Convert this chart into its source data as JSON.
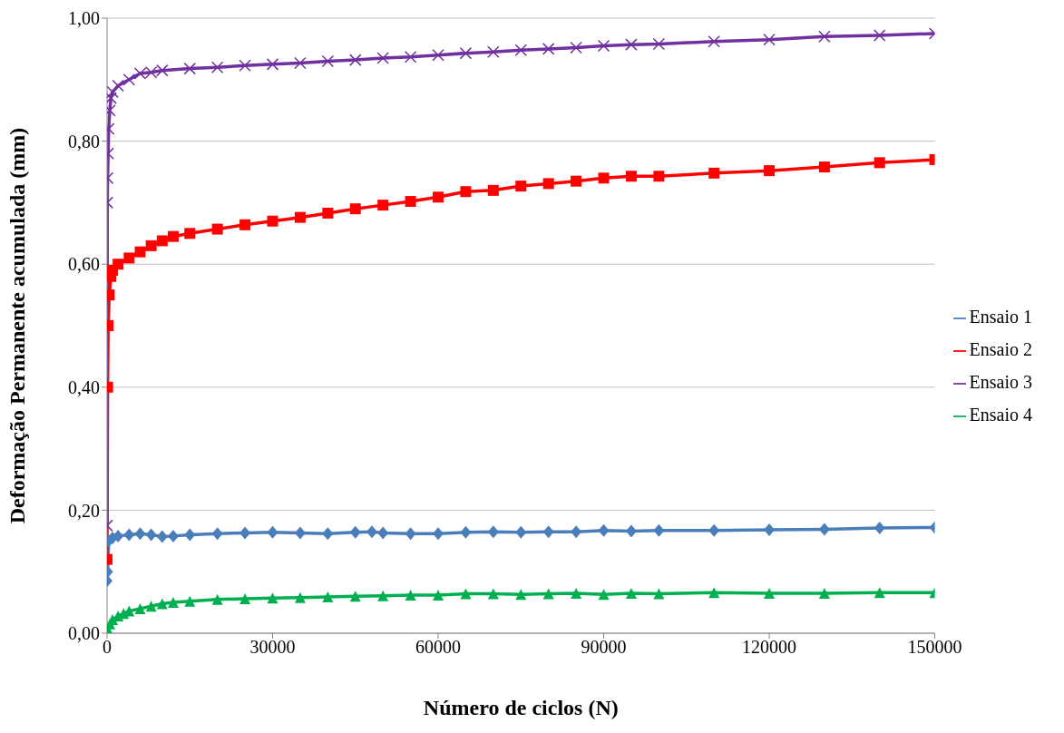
{
  "chart_data": {
    "type": "line",
    "xlabel": "Número de ciclos (N)",
    "ylabel": "Deformação Permanente acumulada (mm)",
    "xlim": [
      0,
      150000
    ],
    "xticks": [
      0,
      30000,
      60000,
      90000,
      120000,
      150000
    ],
    "ylim": [
      0,
      1
    ],
    "yticks": [
      {
        "value": 0,
        "label": "0,00"
      },
      {
        "value": 0.2,
        "label": "0,20"
      },
      {
        "value": 0.4,
        "label": "0,40"
      },
      {
        "value": 0.6,
        "label": "0,60"
      },
      {
        "value": 0.8,
        "label": "0,80"
      },
      {
        "value": 1,
        "label": "1,00"
      }
    ],
    "grid": "y",
    "legend": "right",
    "line_style": "solid",
    "series": [
      {
        "name": "Ensaio 1",
        "color": "#4a7ebb",
        "marker": "diamond",
        "x": [
          0,
          100,
          300,
          1000,
          2000,
          4000,
          6000,
          8000,
          10000,
          12000,
          15000,
          20000,
          25000,
          30000,
          35000,
          40000,
          45000,
          48000,
          50000,
          55000,
          60000,
          65000,
          70000,
          75000,
          80000,
          85000,
          90000,
          95000,
          100000,
          110000,
          120000,
          130000,
          140000,
          150000
        ],
        "values": [
          0.085,
          0.1,
          0.15,
          0.155,
          0.158,
          0.16,
          0.162,
          0.16,
          0.157,
          0.158,
          0.16,
          0.162,
          0.163,
          0.164,
          0.163,
          0.162,
          0.164,
          0.165,
          0.163,
          0.162,
          0.162,
          0.164,
          0.165,
          0.164,
          0.165,
          0.165,
          0.167,
          0.166,
          0.167,
          0.167,
          0.168,
          0.169,
          0.171,
          0.172
        ]
      },
      {
        "name": "Ensaio 2",
        "color": "#ff0000",
        "marker": "square",
        "x": [
          0,
          100,
          200,
          400,
          700,
          1000,
          2000,
          4000,
          6000,
          8000,
          10000,
          12000,
          15000,
          20000,
          25000,
          30000,
          35000,
          40000,
          45000,
          50000,
          55000,
          60000,
          65000,
          70000,
          75000,
          80000,
          85000,
          90000,
          95000,
          100000,
          110000,
          120000,
          130000,
          140000,
          150000
        ],
        "values": [
          0.12,
          0.4,
          0.5,
          0.55,
          0.58,
          0.59,
          0.6,
          0.61,
          0.62,
          0.63,
          0.638,
          0.645,
          0.65,
          0.657,
          0.664,
          0.67,
          0.676,
          0.683,
          0.69,
          0.696,
          0.702,
          0.709,
          0.718,
          0.72,
          0.727,
          0.731,
          0.735,
          0.74,
          0.743,
          0.743,
          0.748,
          0.752,
          0.758,
          0.765,
          0.77
        ]
      },
      {
        "name": "Ensaio 3",
        "color": "#7030a0",
        "marker": "cross",
        "x": [
          0,
          50,
          100,
          200,
          300,
          500,
          700,
          1000,
          2000,
          4000,
          6000,
          8000,
          10000,
          15000,
          20000,
          25000,
          30000,
          35000,
          40000,
          45000,
          50000,
          55000,
          60000,
          65000,
          70000,
          75000,
          80000,
          85000,
          90000,
          95000,
          100000,
          110000,
          120000,
          130000,
          140000,
          150000
        ],
        "values": [
          0.175,
          0.7,
          0.74,
          0.78,
          0.82,
          0.85,
          0.87,
          0.88,
          0.89,
          0.9,
          0.91,
          0.912,
          0.915,
          0.918,
          0.92,
          0.923,
          0.925,
          0.927,
          0.93,
          0.932,
          0.935,
          0.937,
          0.94,
          0.943,
          0.945,
          0.948,
          0.95,
          0.952,
          0.955,
          0.957,
          0.958,
          0.962,
          0.965,
          0.97,
          0.972,
          0.975
        ]
      },
      {
        "name": "Ensaio 4",
        "color": "#00b050",
        "marker": "triangle",
        "x": [
          0,
          200,
          500,
          1000,
          2000,
          3000,
          4000,
          6000,
          8000,
          10000,
          12000,
          15000,
          20000,
          25000,
          30000,
          35000,
          40000,
          45000,
          50000,
          55000,
          60000,
          65000,
          70000,
          75000,
          80000,
          85000,
          90000,
          95000,
          100000,
          110000,
          120000,
          130000,
          140000,
          150000
        ],
        "values": [
          0,
          0.005,
          0.015,
          0.022,
          0.028,
          0.032,
          0.036,
          0.04,
          0.044,
          0.048,
          0.05,
          0.052,
          0.055,
          0.056,
          0.057,
          0.058,
          0.059,
          0.06,
          0.061,
          0.062,
          0.062,
          0.064,
          0.064,
          0.063,
          0.064,
          0.065,
          0.063,
          0.065,
          0.064,
          0.066,
          0.065,
          0.065,
          0.066,
          0.066
        ]
      }
    ]
  }
}
